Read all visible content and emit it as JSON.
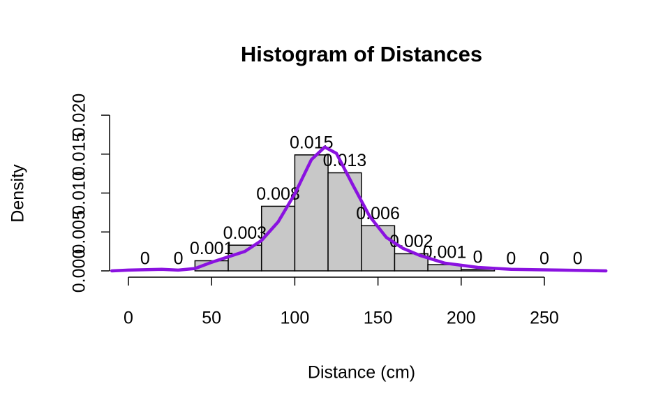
{
  "chart_data": {
    "type": "histogram",
    "title": "Histogram of Distances",
    "x_label": "Distance (cm)",
    "y_label": "Density",
    "bins": [
      0,
      20,
      40,
      60,
      80,
      100,
      120,
      140,
      160,
      180,
      200,
      220,
      240,
      260,
      280
    ],
    "values": [
      0,
      0,
      0.0013,
      0.0033,
      0.0083,
      0.0149,
      0.0126,
      0.0058,
      0.0022,
      0.0008,
      0.0002,
      0,
      0,
      0
    ],
    "value_labels": [
      "0",
      "0",
      "0.001",
      "0.003",
      "0.008",
      "0.015",
      "0.013",
      "0.006",
      "0.002",
      "0.001",
      "0",
      "0",
      "0",
      "0"
    ],
    "color": "#c8c8c8",
    "density": {
      "color": "#8a12e0",
      "x": [
        -10,
        0,
        20,
        30,
        40,
        50,
        60,
        70,
        80,
        90,
        100,
        110,
        118,
        125,
        135,
        145,
        155,
        165,
        175,
        190,
        210,
        230,
        260,
        287
      ],
      "y": [
        0,
        0.0001,
        0.0002,
        0.0001,
        0.0003,
        0.0011,
        0.0018,
        0.0025,
        0.0039,
        0.0063,
        0.0099,
        0.0143,
        0.0159,
        0.0151,
        0.011,
        0.007,
        0.0043,
        0.0029,
        0.002,
        0.001,
        0.00045,
        0.0002,
        0.0001,
        0
      ]
    },
    "xlim": [
      -12,
      292
    ],
    "ylim": [
      -0.0008,
      0.0215
    ],
    "xticks": [
      0,
      50,
      100,
      150,
      200,
      250
    ],
    "yticks": [
      {
        "value": 0,
        "label": "0.000"
      },
      {
        "value": 0.005,
        "label": "0.005"
      },
      {
        "value": 0.01,
        "label": "0.010"
      },
      {
        "value": 0.015,
        "label": "0.015"
      },
      {
        "value": 0.02,
        "label": "0.020"
      }
    ]
  }
}
